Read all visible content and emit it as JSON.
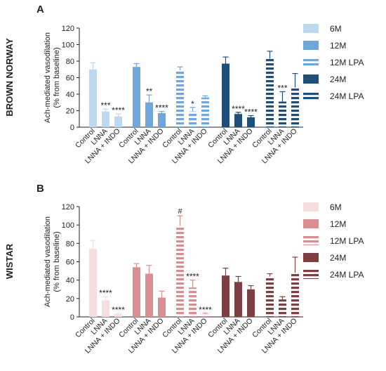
{
  "chart_data": [
    {
      "type": "bar",
      "panel_label": "A",
      "strain_label": "BROWN NORWAY",
      "ylabel_line1": "Ach-mediated vasodilation",
      "ylabel_line2": "(% from baseline)",
      "ylim": [
        0,
        120
      ],
      "yticks": [
        0,
        20,
        40,
        60,
        80,
        100,
        120
      ],
      "categories": [
        "Control",
        "LNNA",
        "LNNA + INDO"
      ],
      "legend_placement": "right",
      "series": [
        {
          "name": "6M",
          "color": "#bcd9f0",
          "striped": false,
          "values": [
            70,
            19,
            13
          ],
          "errors": [
            8,
            3,
            3
          ],
          "annotations": [
            "",
            "***",
            "****"
          ]
        },
        {
          "name": "12M",
          "color": "#6fa6dc",
          "striped": false,
          "values": [
            73,
            30,
            17
          ],
          "errors": [
            4,
            9,
            2
          ],
          "annotations": [
            "",
            "**",
            "****"
          ]
        },
        {
          "name": "12M LPA",
          "color": "#6fa6dc",
          "striped": true,
          "values": [
            69,
            19,
            36
          ],
          "errors": [
            4,
            5,
            2
          ],
          "annotations": [
            "",
            "*",
            ""
          ]
        },
        {
          "name": "24M",
          "color": "#1f4e79",
          "striped": false,
          "values": [
            77,
            16,
            12
          ],
          "errors": [
            8,
            2,
            2
          ],
          "annotations": [
            "",
            "****",
            "****"
          ]
        },
        {
          "name": "24M LPA",
          "color": "#1f4e79",
          "striped": true,
          "values": [
            83,
            31,
            48
          ],
          "errors": [
            9,
            12,
            17
          ],
          "annotations": [
            "",
            "***",
            ""
          ]
        }
      ]
    },
    {
      "type": "bar",
      "panel_label": "B",
      "strain_label": "WISTAR",
      "ylabel_line1": "Ach-mediated vasodilation",
      "ylabel_line2": "(% from baseline)",
      "ylim": [
        0,
        120
      ],
      "yticks": [
        0,
        20,
        40,
        60,
        80,
        100,
        120
      ],
      "categories": [
        "Control",
        "LNNA",
        "LNNA + INDO"
      ],
      "legend_placement": "right",
      "series": [
        {
          "name": "6M",
          "color": "#f5dedd",
          "striped": false,
          "values": [
            74,
            18,
            3
          ],
          "errors": [
            9,
            4,
            1
          ],
          "annotations": [
            "",
            "****",
            "****"
          ]
        },
        {
          "name": "12M",
          "color": "#d98f92",
          "striped": false,
          "values": [
            54,
            47,
            21
          ],
          "errors": [
            4,
            9,
            7
          ],
          "annotations": [
            "",
            "",
            ""
          ]
        },
        {
          "name": "12M LPA",
          "color": "#d98f92",
          "striped": true,
          "values": [
            99,
            32,
            3
          ],
          "errors": [
            11,
            8,
            1
          ],
          "annotations": [
            "#",
            "****",
            "****"
          ]
        },
        {
          "name": "24M",
          "color": "#7e3f42",
          "striped": false,
          "values": [
            45,
            38,
            30
          ],
          "errors": [
            8,
            6,
            4
          ],
          "annotations": [
            "",
            "",
            ""
          ]
        },
        {
          "name": "24M LPA",
          "color": "#7e3f42",
          "striped": true,
          "values": [
            44,
            19,
            48
          ],
          "errors": [
            3,
            3,
            17
          ],
          "annotations": [
            "",
            "",
            ""
          ]
        }
      ]
    }
  ]
}
